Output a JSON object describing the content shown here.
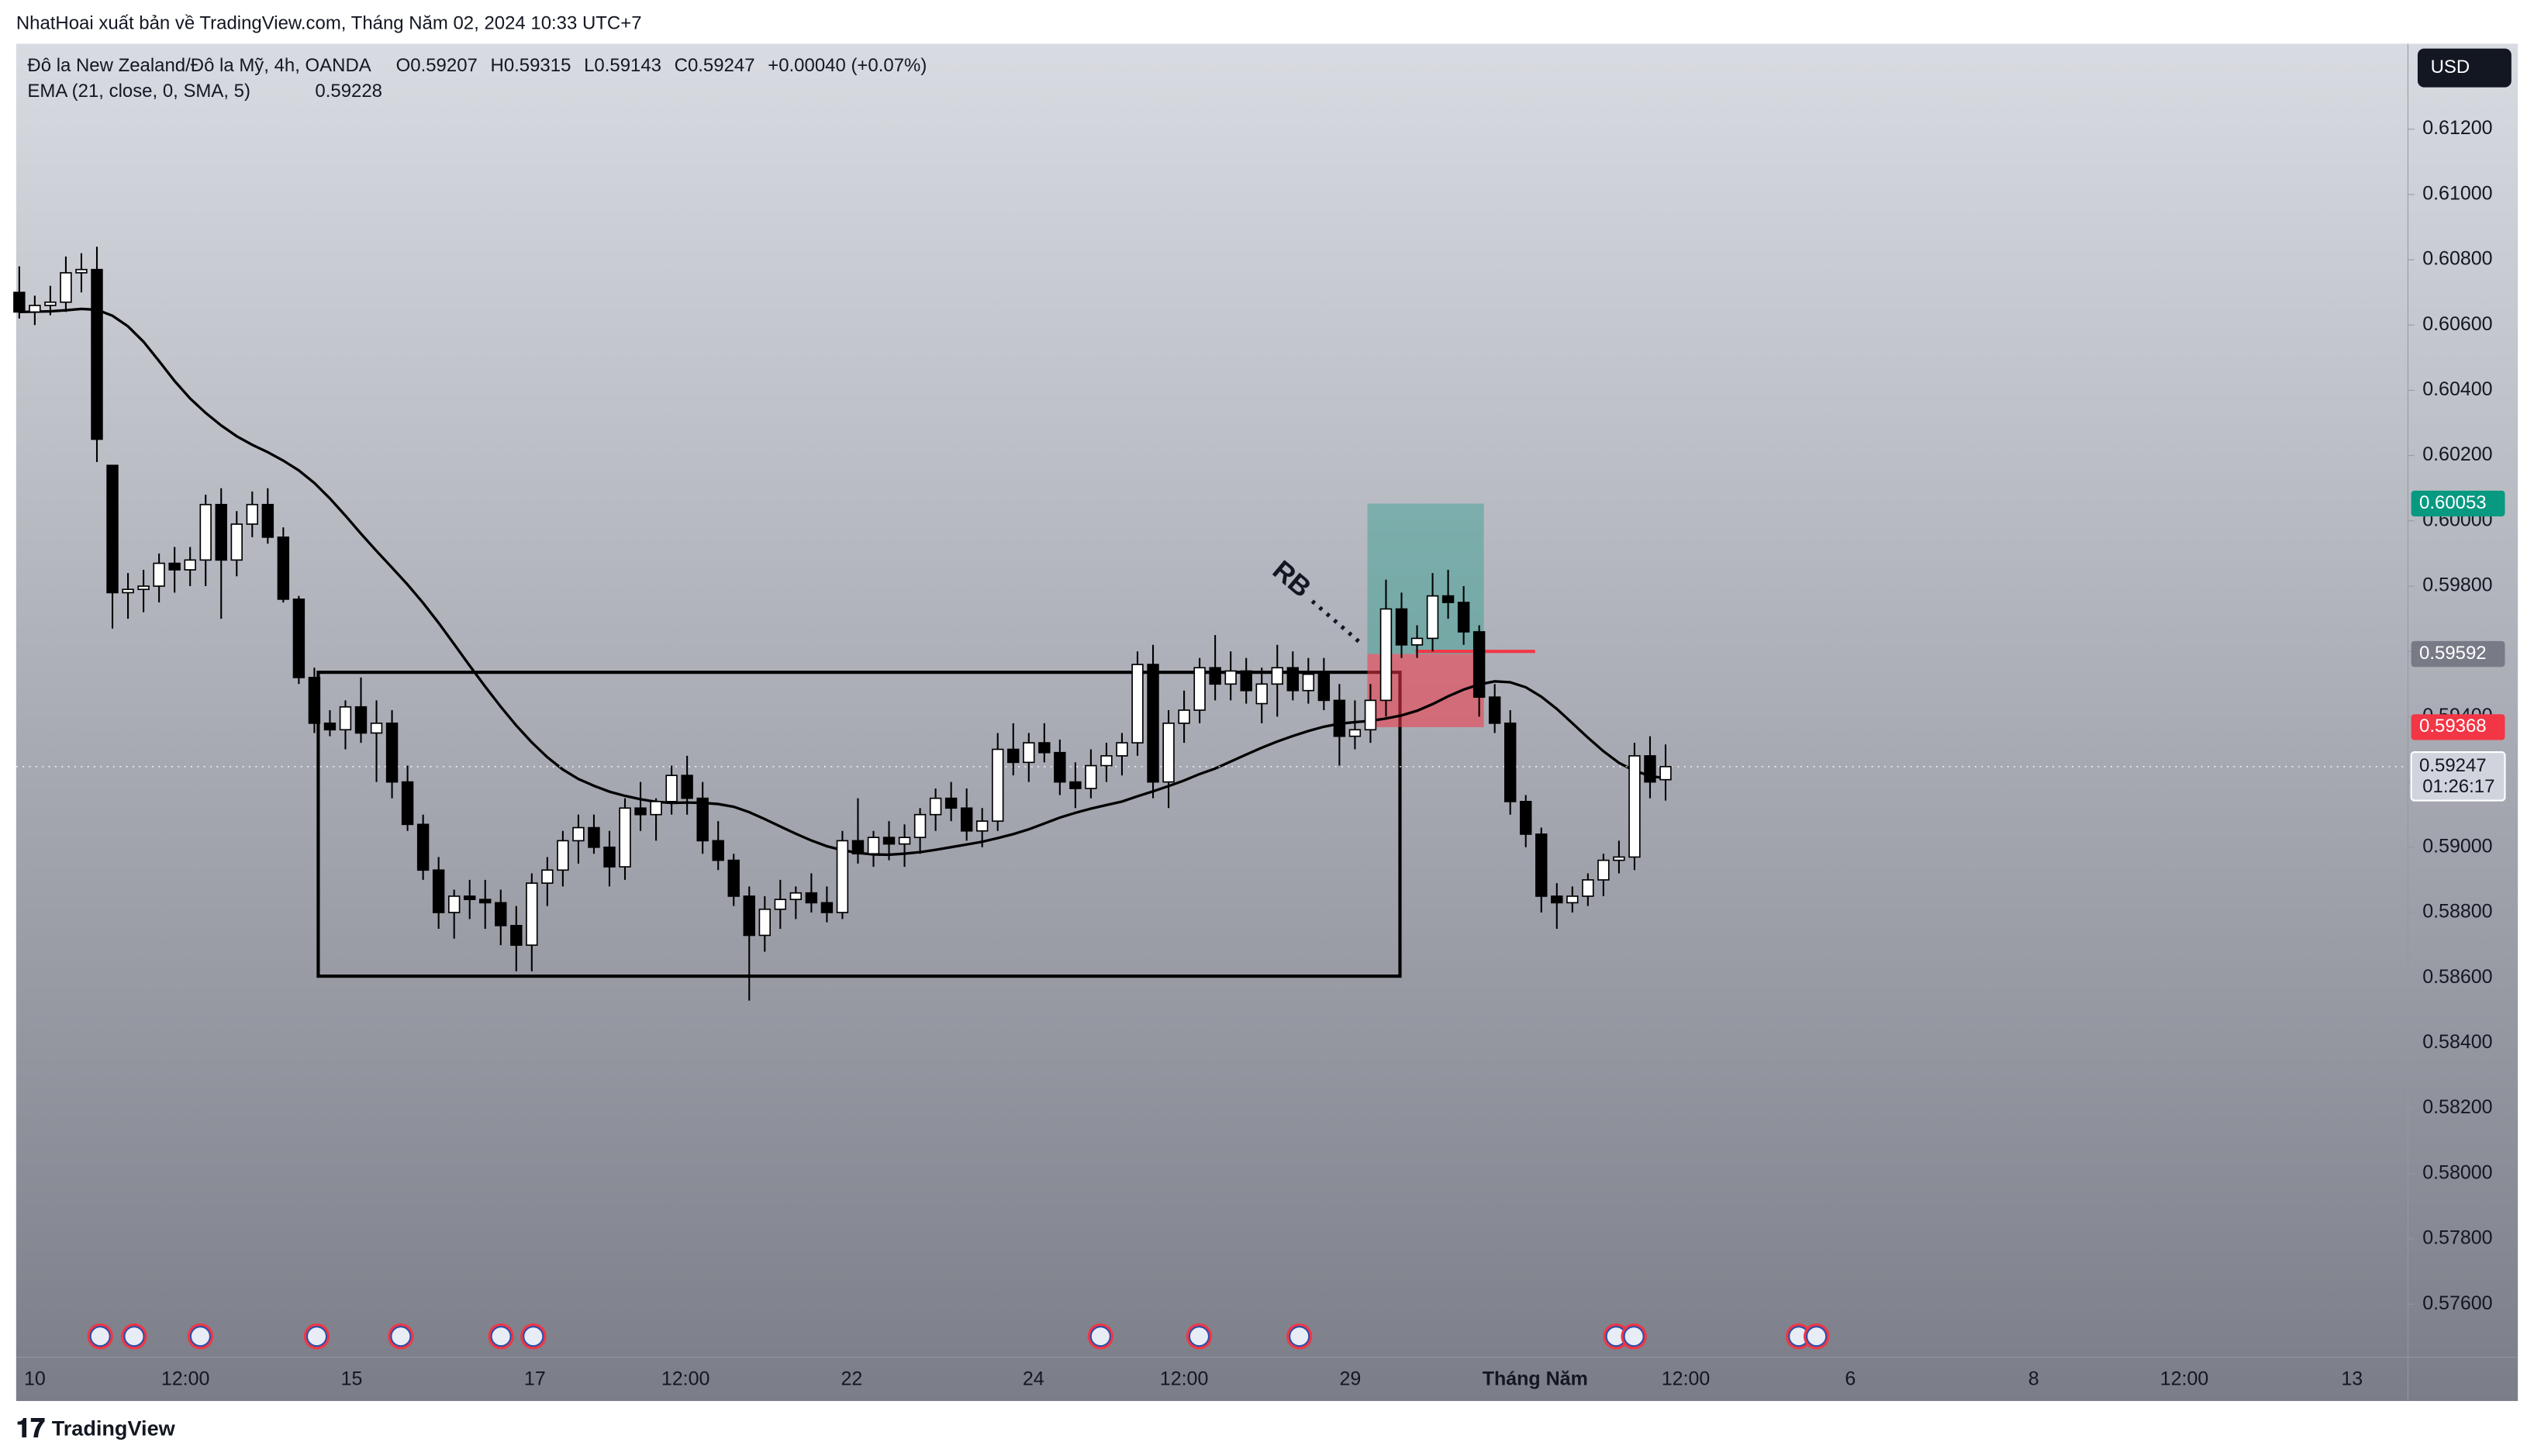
{
  "header": {
    "publisher": "NhatHoai xuất bản về TradingView.com, Tháng Năm 02, 2024 10:33 UTC+7",
    "brand": "TradingView"
  },
  "chart_data": {
    "type": "candlestick",
    "symbol": "Đô la New Zealand/Đô la Mỹ, 4h, OANDA",
    "legend": [
      "O0.59207",
      "H0.59315",
      "L0.59143",
      "C0.59247",
      "+0.00040 (+0.07%)"
    ],
    "indicator": {
      "label": "EMA (21, close, 0, SMA, 5)",
      "value": "0.59228",
      "period": 21,
      "smoothing": 5
    },
    "currency": "USD",
    "countdown": "01:26:17",
    "ylim": [
      0.57437,
      0.61462
    ],
    "yticks": [
      {
        "value": 0.576,
        "label": "0.57600"
      },
      {
        "value": 0.578,
        "label": "0.57800"
      },
      {
        "value": 0.58,
        "label": "0.58000"
      },
      {
        "value": 0.582,
        "label": "0.58200"
      },
      {
        "value": 0.584,
        "label": "0.58400"
      },
      {
        "value": 0.586,
        "label": "0.58600"
      },
      {
        "value": 0.588,
        "label": "0.58800"
      },
      {
        "value": 0.59,
        "label": "0.59000"
      },
      {
        "value": 0.592,
        "label": "0.59200"
      },
      {
        "value": 0.594,
        "label": "0.59400"
      },
      {
        "value": 0.596,
        "label": "0.59600"
      },
      {
        "value": 0.598,
        "label": "0.59800"
      },
      {
        "value": 0.6,
        "label": "0.60000"
      },
      {
        "value": 0.602,
        "label": "0.60200"
      },
      {
        "value": 0.604,
        "label": "0.60400"
      },
      {
        "value": 0.606,
        "label": "0.60600"
      },
      {
        "value": 0.608,
        "label": "0.60800"
      },
      {
        "value": 0.61,
        "label": "0.61000"
      },
      {
        "value": 0.612,
        "label": "0.61200"
      }
    ],
    "xlim": [
      -0.2,
      153.8
    ],
    "xticks": [
      {
        "value": 1,
        "label": "10"
      },
      {
        "value": 10.7,
        "label": "12:00"
      },
      {
        "value": 21.4,
        "label": "15"
      },
      {
        "value": 33.2,
        "label": "17"
      },
      {
        "value": 42.9,
        "label": "12:00"
      },
      {
        "value": 53.6,
        "label": "22"
      },
      {
        "value": 65.3,
        "label": "24"
      },
      {
        "value": 75,
        "label": "12:00"
      },
      {
        "value": 85.7,
        "label": "29"
      },
      {
        "value": 97.6,
        "label": "Tháng Năm"
      },
      {
        "value": 107.3,
        "label": "12:00"
      },
      {
        "value": 117.9,
        "label": "6"
      },
      {
        "value": 129.7,
        "label": "8"
      },
      {
        "value": 139.4,
        "label": "12:00"
      },
      {
        "value": 150.2,
        "label": "13"
      }
    ],
    "ohlc": [
      [
        0.607,
        0.6078,
        0.6062,
        0.6064
      ],
      [
        0.6064,
        0.6069,
        0.606,
        0.6066
      ],
      [
        0.6066,
        0.6072,
        0.6063,
        0.6067
      ],
      [
        0.6067,
        0.6081,
        0.6064,
        0.6076
      ],
      [
        0.6076,
        0.6082,
        0.607,
        0.6077
      ],
      [
        0.6077,
        0.6084,
        0.6018,
        0.6025
      ],
      [
        0.6017,
        0.6017,
        0.5967,
        0.5978
      ],
      [
        0.5978,
        0.5984,
        0.597,
        0.5979
      ],
      [
        0.5979,
        0.5985,
        0.5972,
        0.598
      ],
      [
        0.598,
        0.599,
        0.5975,
        0.5987
      ],
      [
        0.5987,
        0.5992,
        0.5978,
        0.5985
      ],
      [
        0.5985,
        0.5992,
        0.598,
        0.5988
      ],
      [
        0.5988,
        0.6008,
        0.598,
        0.6005
      ],
      [
        0.6005,
        0.601,
        0.597,
        0.5988
      ],
      [
        0.5988,
        0.6003,
        0.5983,
        0.5999
      ],
      [
        0.5999,
        0.6009,
        0.5995,
        0.6005
      ],
      [
        0.6005,
        0.601,
        0.5993,
        0.5995
      ],
      [
        0.5995,
        0.5998,
        0.5975,
        0.5976
      ],
      [
        0.5976,
        0.5977,
        0.595,
        0.5952
      ],
      [
        0.5952,
        0.5955,
        0.5935,
        0.5938
      ],
      [
        0.5938,
        0.5942,
        0.5934,
        0.5936
      ],
      [
        0.5936,
        0.5945,
        0.593,
        0.5943
      ],
      [
        0.5943,
        0.5952,
        0.5932,
        0.5935
      ],
      [
        0.5935,
        0.5945,
        0.592,
        0.5938
      ],
      [
        0.5938,
        0.5942,
        0.5915,
        0.592
      ],
      [
        0.592,
        0.5925,
        0.5905,
        0.5907
      ],
      [
        0.5907,
        0.591,
        0.589,
        0.5893
      ],
      [
        0.5893,
        0.5897,
        0.5875,
        0.588
      ],
      [
        0.588,
        0.5887,
        0.5872,
        0.5885
      ],
      [
        0.5885,
        0.589,
        0.5878,
        0.5884
      ],
      [
        0.5884,
        0.589,
        0.5875,
        0.5883
      ],
      [
        0.5883,
        0.5887,
        0.587,
        0.5876
      ],
      [
        0.5876,
        0.5882,
        0.5862,
        0.587
      ],
      [
        0.587,
        0.5892,
        0.5862,
        0.5889
      ],
      [
        0.5889,
        0.5897,
        0.5882,
        0.5893
      ],
      [
        0.5893,
        0.5905,
        0.5888,
        0.5902
      ],
      [
        0.5902,
        0.591,
        0.5895,
        0.5906
      ],
      [
        0.5906,
        0.591,
        0.5898,
        0.59
      ],
      [
        0.59,
        0.5905,
        0.5888,
        0.5894
      ],
      [
        0.5894,
        0.5915,
        0.589,
        0.5912
      ],
      [
        0.5912,
        0.592,
        0.5905,
        0.591
      ],
      [
        0.591,
        0.5915,
        0.5902,
        0.5914
      ],
      [
        0.5914,
        0.5925,
        0.591,
        0.5922
      ],
      [
        0.5922,
        0.5928,
        0.591,
        0.5915
      ],
      [
        0.5915,
        0.592,
        0.5898,
        0.5902
      ],
      [
        0.5902,
        0.5908,
        0.5893,
        0.5896
      ],
      [
        0.5896,
        0.5898,
        0.5882,
        0.5885
      ],
      [
        0.5885,
        0.5888,
        0.5853,
        0.5873
      ],
      [
        0.5873,
        0.5885,
        0.5868,
        0.5881
      ],
      [
        0.5881,
        0.589,
        0.5875,
        0.5884
      ],
      [
        0.5884,
        0.5888,
        0.5878,
        0.5886
      ],
      [
        0.5886,
        0.5892,
        0.588,
        0.5883
      ],
      [
        0.5883,
        0.5888,
        0.5877,
        0.588
      ],
      [
        0.588,
        0.5905,
        0.5878,
        0.5902
      ],
      [
        0.5902,
        0.5915,
        0.5895,
        0.5898
      ],
      [
        0.5898,
        0.5905,
        0.5894,
        0.5903
      ],
      [
        0.5903,
        0.5908,
        0.5896,
        0.5901
      ],
      [
        0.5901,
        0.5907,
        0.5894,
        0.5903
      ],
      [
        0.5903,
        0.5912,
        0.5898,
        0.591
      ],
      [
        0.591,
        0.5918,
        0.5905,
        0.5915
      ],
      [
        0.5915,
        0.592,
        0.5908,
        0.5912
      ],
      [
        0.5912,
        0.5918,
        0.5902,
        0.5905
      ],
      [
        0.5905,
        0.5912,
        0.59,
        0.5908
      ],
      [
        0.5908,
        0.5935,
        0.5905,
        0.593
      ],
      [
        0.593,
        0.5938,
        0.5922,
        0.5926
      ],
      [
        0.5926,
        0.5935,
        0.592,
        0.5932
      ],
      [
        0.5932,
        0.5938,
        0.5926,
        0.5929
      ],
      [
        0.5929,
        0.5933,
        0.5916,
        0.592
      ],
      [
        0.592,
        0.5926,
        0.5912,
        0.5918
      ],
      [
        0.5918,
        0.593,
        0.5915,
        0.5925
      ],
      [
        0.5925,
        0.5932,
        0.592,
        0.5928
      ],
      [
        0.5928,
        0.5935,
        0.5922,
        0.5932
      ],
      [
        0.5932,
        0.596,
        0.5928,
        0.5956
      ],
      [
        0.5956,
        0.5962,
        0.5915,
        0.592
      ],
      [
        0.592,
        0.5942,
        0.5912,
        0.5938
      ],
      [
        0.5938,
        0.5948,
        0.5932,
        0.5942
      ],
      [
        0.5942,
        0.5958,
        0.5938,
        0.5955
      ],
      [
        0.5955,
        0.5965,
        0.5945,
        0.595
      ],
      [
        0.595,
        0.596,
        0.5945,
        0.5954
      ],
      [
        0.5954,
        0.5958,
        0.5944,
        0.5948
      ],
      [
        0.5944,
        0.5955,
        0.5938,
        0.595
      ],
      [
        0.595,
        0.5962,
        0.594,
        0.5955
      ],
      [
        0.5955,
        0.596,
        0.5945,
        0.5948
      ],
      [
        0.5948,
        0.5958,
        0.5944,
        0.5953
      ],
      [
        0.5953,
        0.5958,
        0.5942,
        0.5945
      ],
      [
        0.5945,
        0.595,
        0.5925,
        0.5934
      ],
      [
        0.5934,
        0.5945,
        0.593,
        0.5936
      ],
      [
        0.5936,
        0.595,
        0.5932,
        0.5945
      ],
      [
        0.5945,
        0.5982,
        0.594,
        0.5973
      ],
      [
        0.5973,
        0.5978,
        0.5958,
        0.5962
      ],
      [
        0.5962,
        0.5968,
        0.5958,
        0.5964
      ],
      [
        0.5964,
        0.5984,
        0.596,
        0.5977
      ],
      [
        0.5977,
        0.5985,
        0.597,
        0.5975
      ],
      [
        0.5975,
        0.598,
        0.5962,
        0.5966
      ],
      [
        0.5966,
        0.5968,
        0.594,
        0.5946
      ],
      [
        0.5946,
        0.595,
        0.5935,
        0.5938
      ],
      [
        0.5938,
        0.5942,
        0.591,
        0.5914
      ],
      [
        0.5914,
        0.5916,
        0.59,
        0.5904
      ],
      [
        0.5904,
        0.5906,
        0.588,
        0.5885
      ],
      [
        0.5885,
        0.5889,
        0.5875,
        0.5883
      ],
      [
        0.5883,
        0.5888,
        0.588,
        0.5885
      ],
      [
        0.5885,
        0.5892,
        0.5882,
        0.589
      ],
      [
        0.589,
        0.5898,
        0.5885,
        0.5896
      ],
      [
        0.5896,
        0.5902,
        0.5892,
        0.5897
      ],
      [
        0.5897,
        0.5932,
        0.5893,
        0.5928
      ],
      [
        0.5928,
        0.5934,
        0.5915,
        0.592
      ],
      [
        0.59207,
        0.59315,
        0.59143,
        0.59247
      ]
    ],
    "box": {
      "top": 0.59536,
      "bottom": 0.58605,
      "start": 19.25,
      "end": 88.9
    },
    "position": {
      "entry": 0.59592,
      "target": 0.60053,
      "stop": 0.59368,
      "start": 86.8,
      "end": 94.3
    },
    "level": {
      "price": 0.596,
      "start": 89.9,
      "end": 97.6
    },
    "annotation": "RB",
    "colors": {
      "up": "#ffffff",
      "down": "#000000",
      "target": "#089981",
      "stop": "#f23645",
      "entry": "#787b86"
    }
  }
}
